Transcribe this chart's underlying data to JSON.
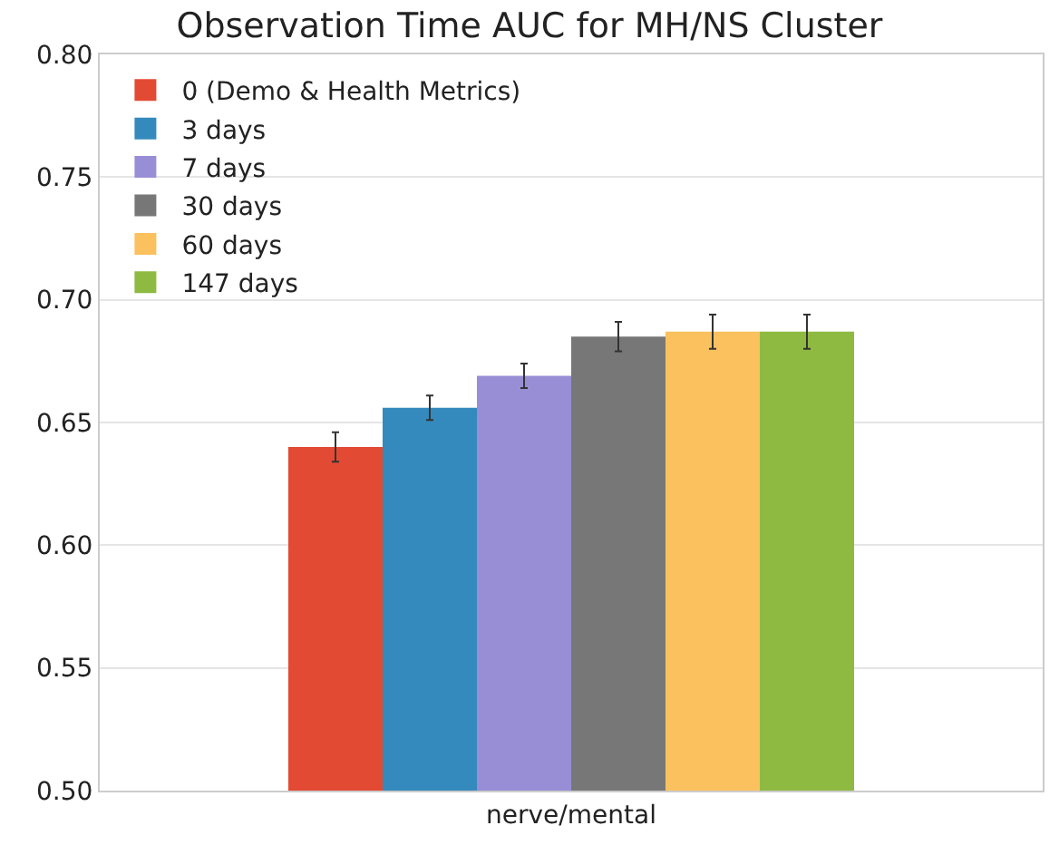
{
  "chart_data": {
    "type": "bar",
    "title": "Observation Time AUC for MH/NS Cluster",
    "categories": [
      "nerve/mental"
    ],
    "series": [
      {
        "name": "0 (Demo & Health Metrics)",
        "color": "#e24a33",
        "values": [
          0.64
        ],
        "errors": [
          0.006
        ]
      },
      {
        "name": "3 days",
        "color": "#348abd",
        "values": [
          0.656
        ],
        "errors": [
          0.005
        ]
      },
      {
        "name": "7 days",
        "color": "#988ed5",
        "values": [
          0.669
        ],
        "errors": [
          0.005
        ]
      },
      {
        "name": "30 days",
        "color": "#777777",
        "values": [
          0.685
        ],
        "errors": [
          0.006
        ]
      },
      {
        "name": "60 days",
        "color": "#fbc15e",
        "values": [
          0.687
        ],
        "errors": [
          0.007
        ]
      },
      {
        "name": "147 days",
        "color": "#8eba42",
        "values": [
          0.687
        ],
        "errors": [
          0.007
        ]
      }
    ],
    "ylim": [
      0.5,
      0.8
    ],
    "yticks": [
      {
        "value": 0.5,
        "label": "0.50"
      },
      {
        "value": 0.55,
        "label": "0.55"
      },
      {
        "value": 0.6,
        "label": "0.60"
      },
      {
        "value": 0.65,
        "label": "0.65"
      },
      {
        "value": 0.7,
        "label": "0.70"
      },
      {
        "value": 0.75,
        "label": "0.75"
      },
      {
        "value": 0.8,
        "label": "0.80"
      }
    ],
    "grid": "y",
    "legend": "top left"
  }
}
